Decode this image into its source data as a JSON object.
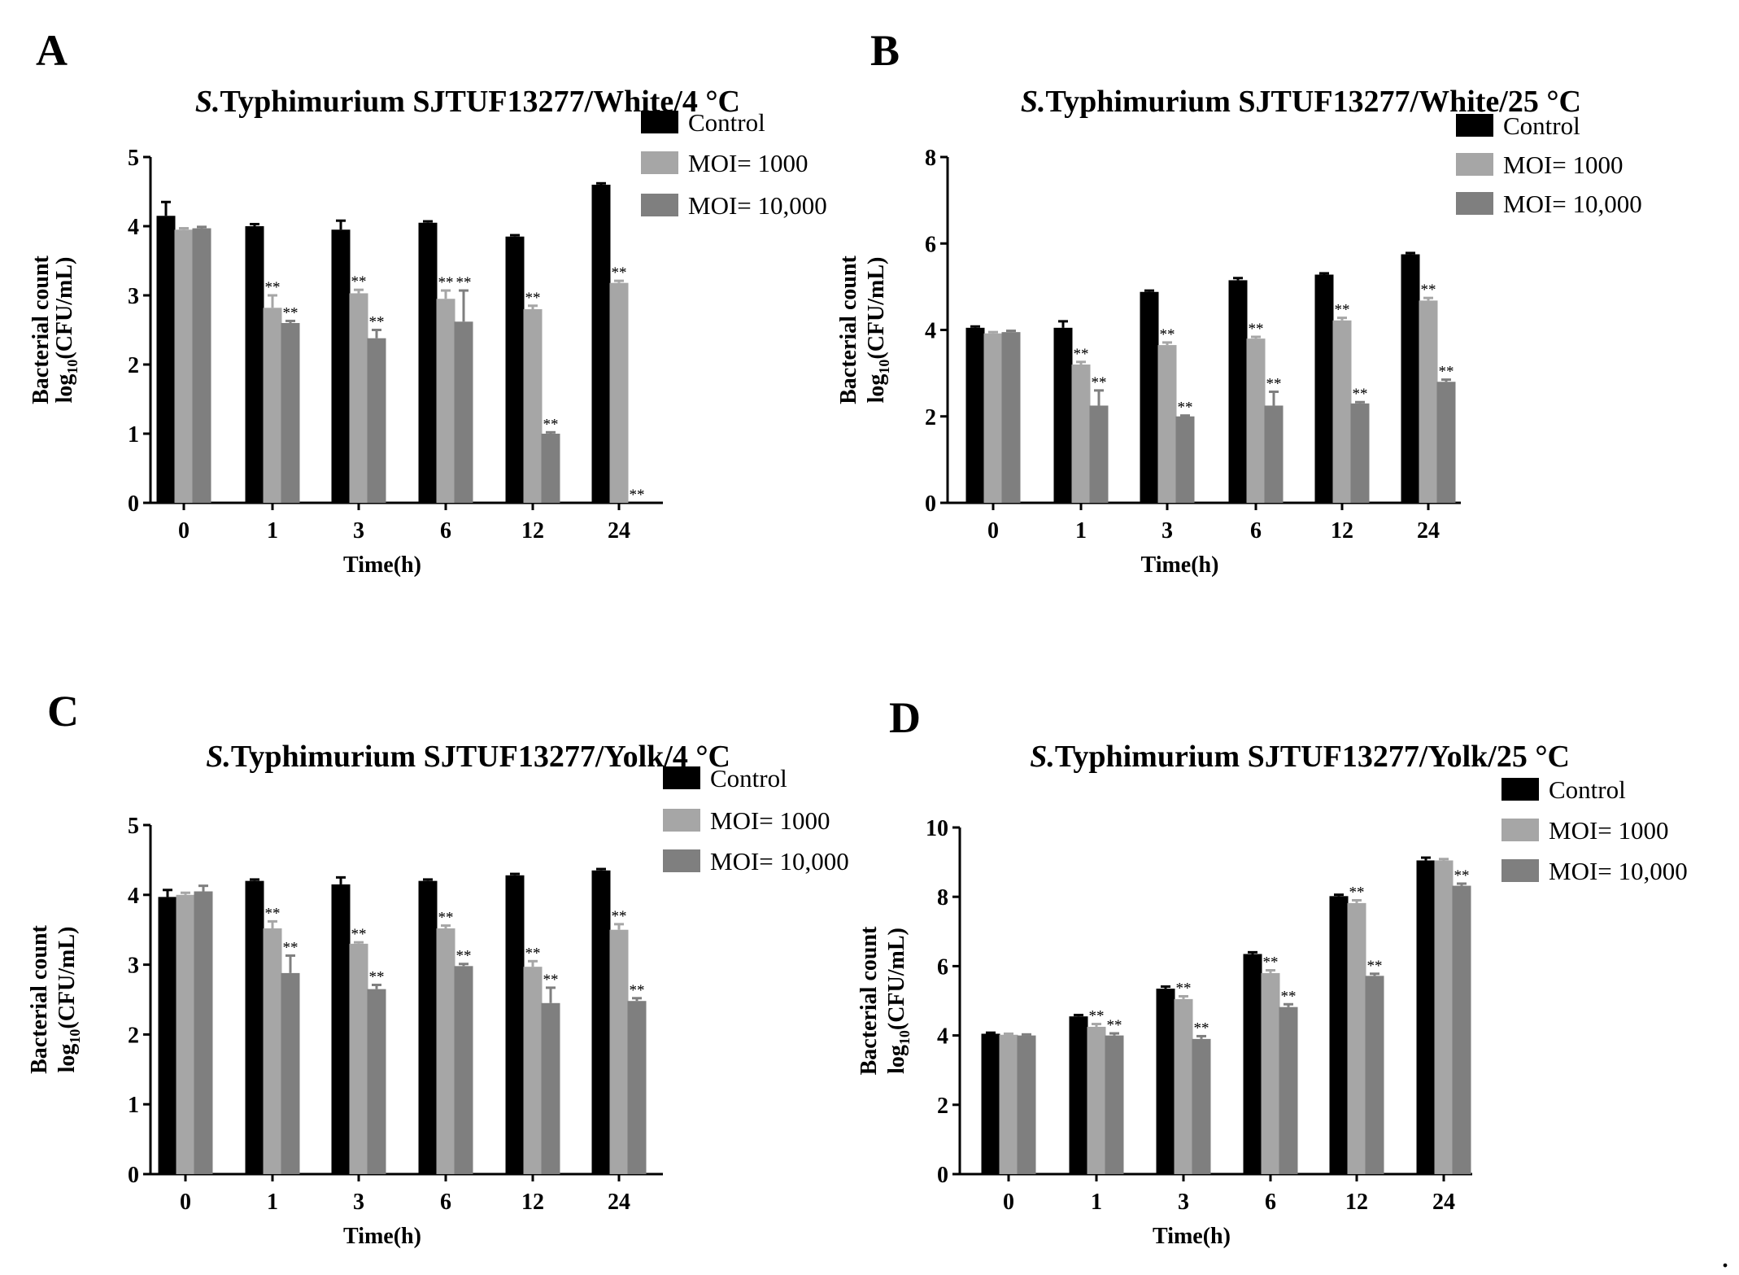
{
  "trailing_mark": ".",
  "colors": {
    "control": "#000000",
    "moi_1000": "#a6a6a6",
    "moi_10000": "#7f7f7f"
  },
  "chart_data": [
    {
      "type": "bar",
      "panel": "A",
      "title_italic": "S.",
      "title_rest": "Typhimurium SJTUF13277/White/4 °C",
      "xlabel": "Time(h)",
      "ylabel_line1": "Bacterial count",
      "ylabel_line2_prefix": "log",
      "ylabel_line2_sub": "10",
      "ylabel_line2_suffix": "(CFU/mL)",
      "ylim": [
        0,
        5
      ],
      "yticks": [
        0,
        1,
        2,
        3,
        4,
        5
      ],
      "categories": [
        "0",
        "1",
        "3",
        "6",
        "12",
        "24"
      ],
      "legend_position": "top-right",
      "series": [
        {
          "name": "Control",
          "values": [
            4.15,
            4.0,
            3.95,
            4.05,
            3.85,
            4.6
          ],
          "errors": [
            0.2,
            0.03,
            0.13,
            0.02,
            0.02,
            0.02
          ],
          "sig": [
            "",
            "",
            "",
            "",
            "",
            ""
          ]
        },
        {
          "name": "MOI= 1000",
          "values": [
            3.95,
            2.82,
            3.03,
            2.95,
            2.8,
            3.18
          ],
          "errors": [
            0.02,
            0.18,
            0.05,
            0.12,
            0.05,
            0.03
          ],
          "sig": [
            "",
            "**",
            "**",
            "**",
            "**",
            "**"
          ]
        },
        {
          "name": "MOI= 10,000",
          "values": [
            3.97,
            2.6,
            2.38,
            2.62,
            1.0,
            0.0
          ],
          "errors": [
            0.02,
            0.03,
            0.12,
            0.45,
            0.02,
            0.0
          ],
          "sig": [
            "",
            "**",
            "**",
            "**",
            "**",
            "**"
          ]
        }
      ]
    },
    {
      "type": "bar",
      "panel": "B",
      "title_italic": "S.",
      "title_rest": "Typhimurium SJTUF13277/White/25 °C",
      "xlabel": "Time(h)",
      "ylabel_line1": "Bacterial count",
      "ylabel_line2_prefix": "log",
      "ylabel_line2_sub": "10",
      "ylabel_line2_suffix": "(CFU/mL)",
      "ylim": [
        0,
        8
      ],
      "yticks": [
        0,
        2,
        4,
        6,
        8
      ],
      "categories": [
        "0",
        "1",
        "3",
        "6",
        "12",
        "24"
      ],
      "legend_position": "top-right",
      "series": [
        {
          "name": "Control",
          "values": [
            4.05,
            4.05,
            4.88,
            5.15,
            5.28,
            5.75
          ],
          "errors": [
            0.03,
            0.15,
            0.03,
            0.05,
            0.03,
            0.03
          ],
          "sig": [
            "",
            "",
            "",
            "",
            "",
            ""
          ]
        },
        {
          "name": "MOI= 1000",
          "values": [
            3.92,
            3.2,
            3.65,
            3.8,
            4.22,
            4.68
          ],
          "errors": [
            0.03,
            0.06,
            0.06,
            0.04,
            0.06,
            0.06
          ],
          "sig": [
            "",
            "**",
            "**",
            "**",
            "**",
            "**"
          ]
        },
        {
          "name": "MOI= 10,000",
          "values": [
            3.95,
            2.25,
            2.0,
            2.25,
            2.3,
            2.8
          ],
          "errors": [
            0.03,
            0.35,
            0.02,
            0.32,
            0.03,
            0.05
          ],
          "sig": [
            "",
            "**",
            "**",
            "**",
            "**",
            "**"
          ]
        }
      ]
    },
    {
      "type": "bar",
      "panel": "C",
      "title_italic": "S.",
      "title_rest": "Typhimurium SJTUF13277/Yolk/4 °C",
      "xlabel": "Time(h)",
      "ylabel_line1": "Bacterial count",
      "ylabel_line2_prefix": "log",
      "ylabel_line2_sub": "10",
      "ylabel_line2_suffix": "(CFU/mL)",
      "ylim": [
        0,
        5
      ],
      "yticks": [
        0,
        1,
        2,
        3,
        4,
        5
      ],
      "categories": [
        "0",
        "1",
        "3",
        "6",
        "12",
        "24"
      ],
      "legend_position": "top-right",
      "series": [
        {
          "name": "Control",
          "values": [
            3.97,
            4.2,
            4.15,
            4.2,
            4.28,
            4.35
          ],
          "errors": [
            0.1,
            0.02,
            0.1,
            0.02,
            0.02,
            0.02
          ],
          "sig": [
            "",
            "",
            "",
            "",
            "",
            ""
          ]
        },
        {
          "name": "MOI= 1000",
          "values": [
            4.0,
            3.52,
            3.3,
            3.52,
            2.97,
            3.5
          ],
          "errors": [
            0.03,
            0.1,
            0.02,
            0.04,
            0.08,
            0.08
          ],
          "sig": [
            "",
            "**",
            "**",
            "**",
            "**",
            "**"
          ]
        },
        {
          "name": "MOI= 10,000",
          "values": [
            4.05,
            2.88,
            2.65,
            2.98,
            2.45,
            2.48
          ],
          "errors": [
            0.08,
            0.25,
            0.06,
            0.03,
            0.22,
            0.04
          ],
          "sig": [
            "",
            "**",
            "**",
            "**",
            "**",
            "**"
          ]
        }
      ]
    },
    {
      "type": "bar",
      "panel": "D",
      "title_italic": "S.",
      "title_rest": "Typhimurium SJTUF13277/Yolk/25 °C",
      "xlabel": "Time(h)",
      "ylabel_line1": "Bacterial count",
      "ylabel_line2_prefix": "log",
      "ylabel_line2_sub": "10",
      "ylabel_line2_suffix": "(CFU/mL)",
      "ylim": [
        0,
        10
      ],
      "yticks": [
        0,
        2,
        4,
        6,
        8,
        10
      ],
      "categories": [
        "0",
        "1",
        "3",
        "6",
        "12",
        "24"
      ],
      "legend_position": "top-right",
      "series": [
        {
          "name": "Control",
          "values": [
            4.05,
            4.55,
            5.35,
            6.35,
            8.02,
            9.05
          ],
          "errors": [
            0.03,
            0.04,
            0.06,
            0.05,
            0.04,
            0.08
          ],
          "sig": [
            "",
            "",
            "",
            "",
            "",
            ""
          ]
        },
        {
          "name": "MOI= 1000",
          "values": [
            4.02,
            4.25,
            5.05,
            5.8,
            7.82,
            9.05
          ],
          "errors": [
            0.03,
            0.08,
            0.08,
            0.08,
            0.08,
            0.04
          ],
          "sig": [
            "",
            "**",
            "**",
            "**",
            "**",
            ""
          ]
        },
        {
          "name": "MOI= 10,000",
          "values": [
            4.0,
            4.0,
            3.9,
            4.82,
            5.72,
            8.32
          ],
          "errors": [
            0.03,
            0.06,
            0.08,
            0.08,
            0.06,
            0.06
          ],
          "sig": [
            "",
            "**",
            "**",
            "**",
            "**",
            "**"
          ]
        }
      ]
    }
  ]
}
